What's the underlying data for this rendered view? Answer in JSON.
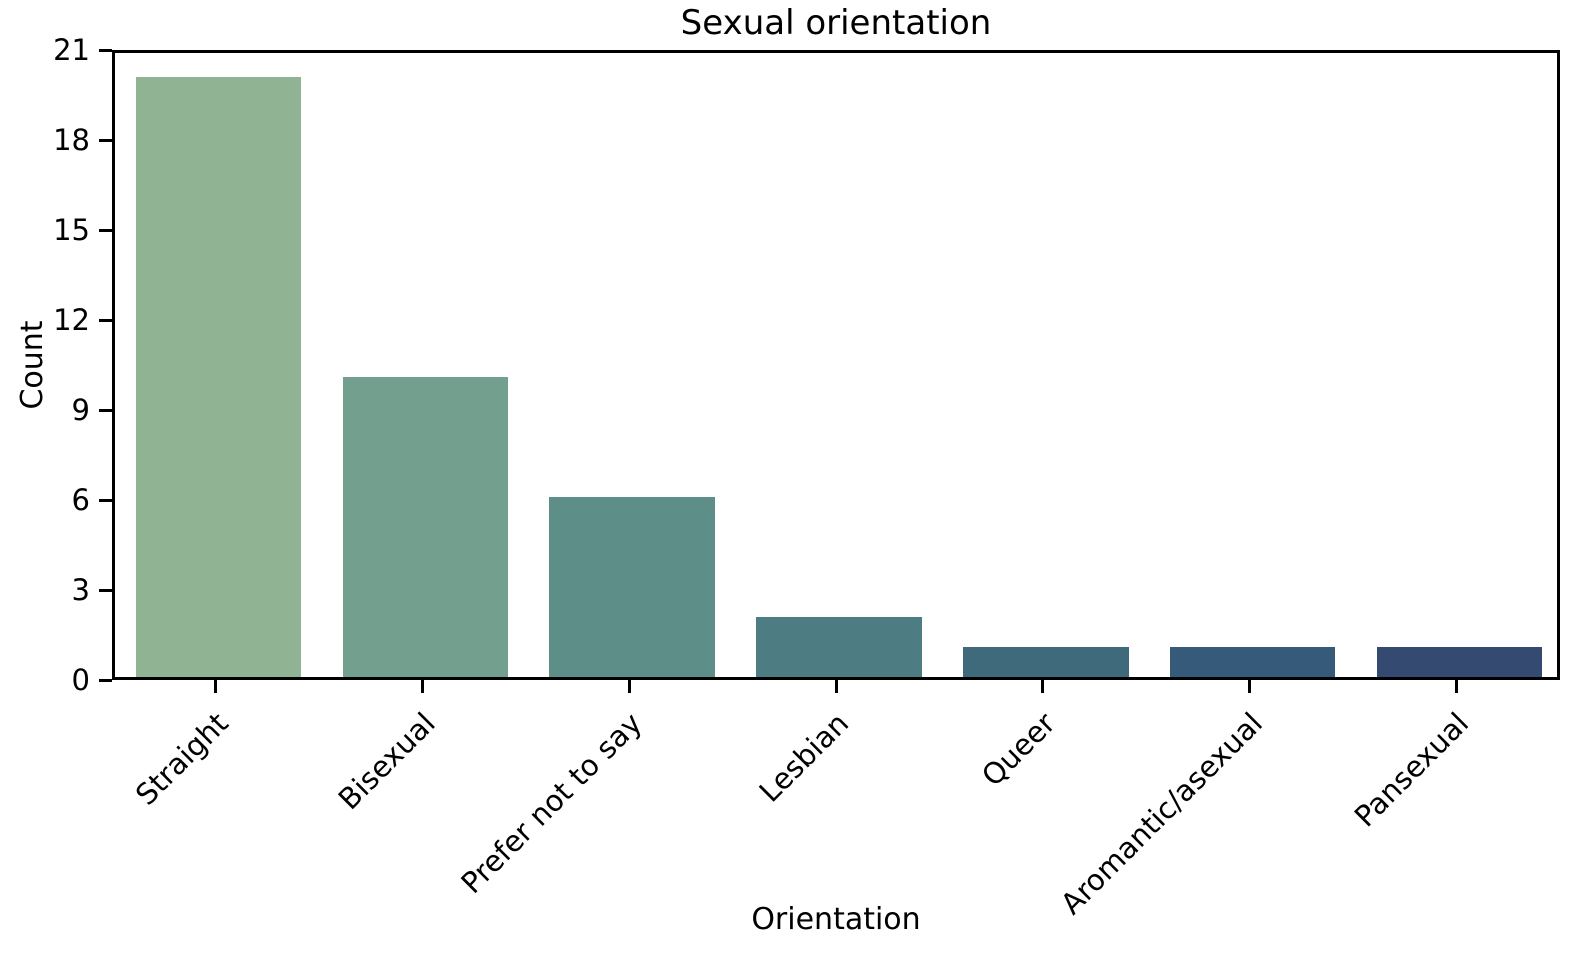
{
  "figure": {
    "background_color": "#ffffff",
    "axis_color": "#000000",
    "text_color": "#000000"
  },
  "chart_data": {
    "type": "bar",
    "title": "Sexual orientation",
    "xlabel": "Orientation",
    "ylabel": "Count",
    "categories": [
      "Straight",
      "Bisexual",
      "Prefer not to say",
      "Lesbian",
      "Queer",
      "Aromantic/asexual",
      "Pansexual"
    ],
    "values": [
      20,
      10,
      6,
      2,
      1,
      1,
      1
    ],
    "bar_colors": [
      "#90b493",
      "#73a08e",
      "#5d8e88",
      "#4d7d82",
      "#3f6a7b",
      "#365a79",
      "#344a71"
    ],
    "ylim": [
      0,
      21
    ],
    "yticks": [
      0,
      3,
      6,
      9,
      12,
      15,
      18,
      21
    ],
    "grid": false,
    "legend": "none",
    "bar_width_fraction": 0.8,
    "xtick_rotation_deg": 45
  }
}
